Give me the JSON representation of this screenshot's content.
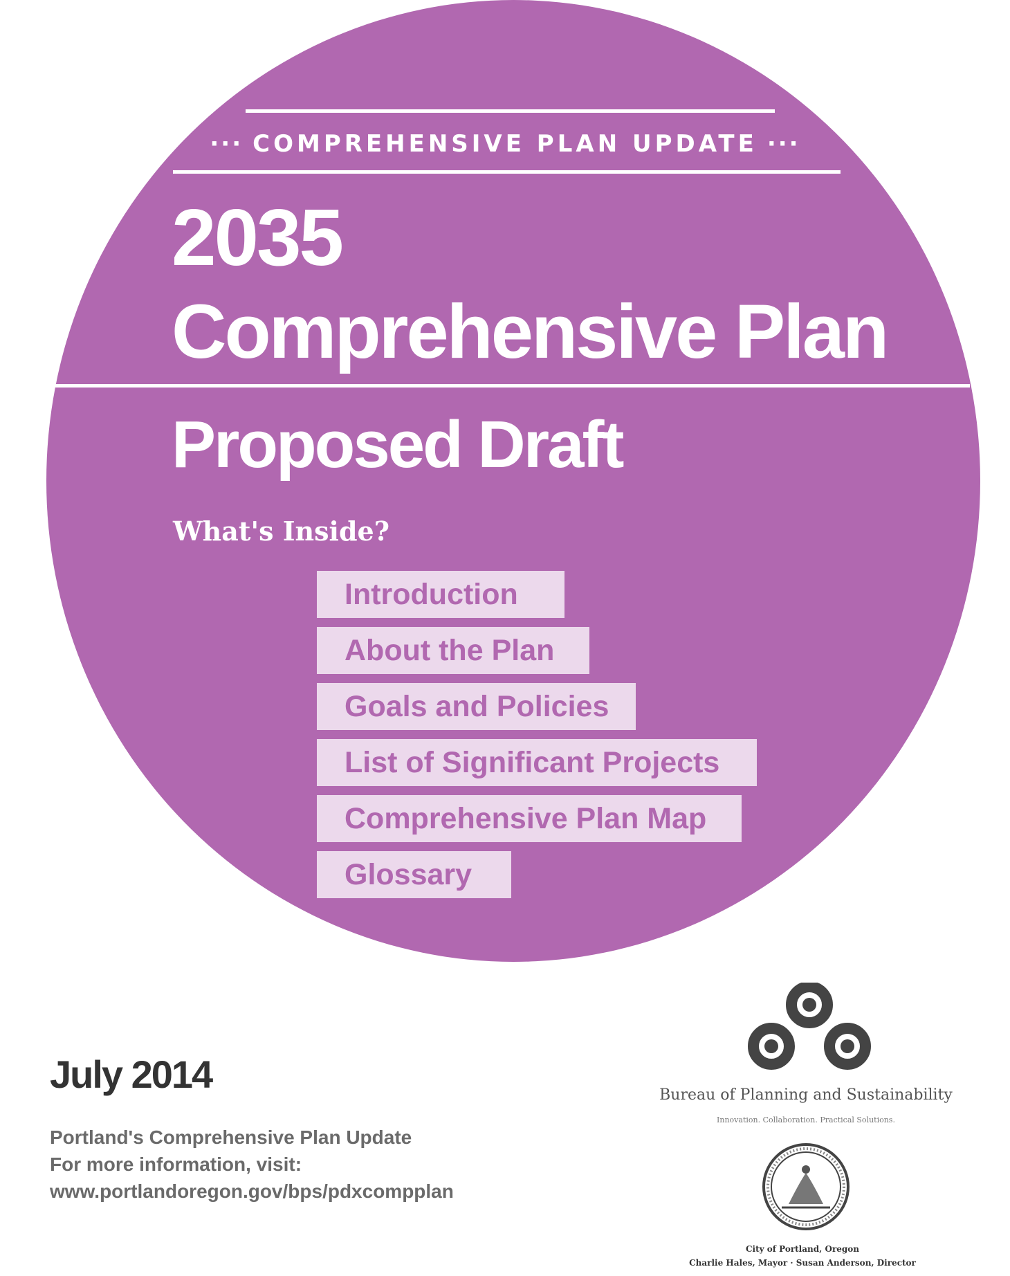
{
  "colors": {
    "purple": "#b168b0",
    "toc_bg": "#ecd9ec",
    "toc_text": "#b168b0",
    "dark_text": "#333333",
    "gray_text": "#6a6a6a"
  },
  "header": {
    "kicker_dots": "···",
    "kicker": "COMPREHENSIVE PLAN UPDATE",
    "title_year": "2035",
    "title_main": "Comprehensive Plan",
    "subtitle": "Proposed Draft"
  },
  "contents": {
    "heading": "What's Inside?",
    "items": [
      {
        "label": "Introduction"
      },
      {
        "label": "About the Plan"
      },
      {
        "label": "Goals and Policies"
      },
      {
        "label": "List of Significant Projects"
      },
      {
        "label": "Comprehensive Plan Map"
      },
      {
        "label": "Glossary"
      }
    ]
  },
  "footer": {
    "date": "July 2014",
    "line1": "Portland's Comprehensive Plan Update",
    "line2": "For more information, visit:",
    "url": "www.portlandoregon.gov/bps/pdxcompplan"
  },
  "logos": {
    "bureau_icon": "bps-logo-icon",
    "bureau_name": "Bureau of Planning and Sustainability",
    "bureau_tagline": "Innovation. Collaboration. Practical Solutions.",
    "seal_icon": "city-seal-icon",
    "city_name": "City of Portland, Oregon",
    "city_officials": "Charlie Hales, Mayor · Susan Anderson, Director"
  }
}
